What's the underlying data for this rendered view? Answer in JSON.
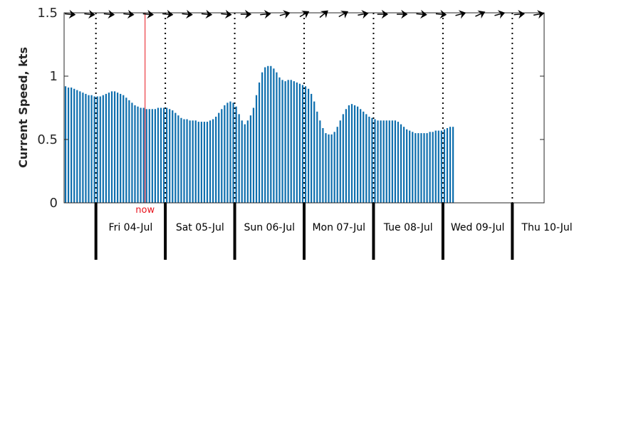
{
  "chart_data": {
    "type": "bar",
    "ylabel": "Current Speed, kts",
    "ylim": [
      0,
      1.5
    ],
    "yticks": [
      {
        "value": 0,
        "label": "0"
      },
      {
        "value": 0.5,
        "label": "0.5"
      },
      {
        "value": 1,
        "label": "1"
      },
      {
        "value": 1.5,
        "label": "1.5"
      }
    ],
    "x_unit": "hours from Fri 04-Jul 00:00",
    "xlim": [
      -11,
      155
    ],
    "days": [
      "Fri 04-Jul",
      "Sat 05-Jul",
      "Sun 06-Jul",
      "Mon 07-Jul",
      "Tue 08-Jul",
      "Wed 09-Jul",
      "Thu 10-Jul"
    ],
    "now_marker": {
      "label": "now",
      "x": 17,
      "color": "#e8141d"
    },
    "bar_color": "#0f6fae",
    "direction_arrows": "black",
    "series": [
      {
        "x_start": -11,
        "x_step": 1,
        "values": [
          0.92,
          0.91,
          0.91,
          0.9,
          0.89,
          0.88,
          0.87,
          0.86,
          0.85,
          0.85,
          0.84,
          0.84,
          0.84,
          0.85,
          0.86,
          0.87,
          0.88,
          0.88,
          0.87,
          0.86,
          0.85,
          0.83,
          0.81,
          0.79,
          0.77,
          0.76,
          0.75,
          0.75,
          0.74,
          0.74,
          0.74,
          0.74,
          0.75,
          0.75,
          0.75,
          0.75,
          0.74,
          0.73,
          0.71,
          0.69,
          0.67,
          0.66,
          0.66,
          0.65,
          0.65,
          0.65,
          0.64,
          0.64,
          0.64,
          0.64,
          0.65,
          0.66,
          0.68,
          0.71,
          0.74,
          0.77,
          0.79,
          0.8,
          0.79,
          0.76,
          0.7,
          0.65,
          0.62,
          0.65,
          0.69,
          0.75,
          0.85,
          0.95,
          1.03,
          1.07,
          1.08,
          1.08,
          1.06,
          1.03,
          0.99,
          0.97,
          0.96,
          0.97,
          0.97,
          0.96,
          0.95,
          0.94,
          0.93,
          0.92,
          0.9,
          0.86,
          0.8,
          0.72,
          0.65,
          0.59,
          0.55,
          0.54,
          0.54,
          0.56,
          0.6,
          0.65,
          0.7,
          0.74,
          0.77,
          0.78,
          0.77,
          0.76,
          0.74,
          0.72,
          0.7,
          0.68,
          0.67,
          0.66,
          0.65,
          0.65,
          0.65,
          0.65,
          0.65,
          0.65,
          0.65,
          0.64,
          0.62,
          0.6,
          0.58,
          0.57,
          0.56,
          0.55,
          0.55,
          0.55,
          0.55,
          0.55,
          0.56,
          0.56,
          0.57,
          0.57,
          0.57,
          0.58,
          0.59,
          0.6,
          0.6
        ]
      }
    ],
    "arrow_angles_deg": [
      185,
      185,
      185,
      185,
      185,
      185,
      185,
      185,
      185,
      180,
      175,
      165,
      150,
      140,
      150,
      170,
      180,
      180,
      185,
      185,
      165,
      155,
      165,
      175,
      170
    ]
  }
}
